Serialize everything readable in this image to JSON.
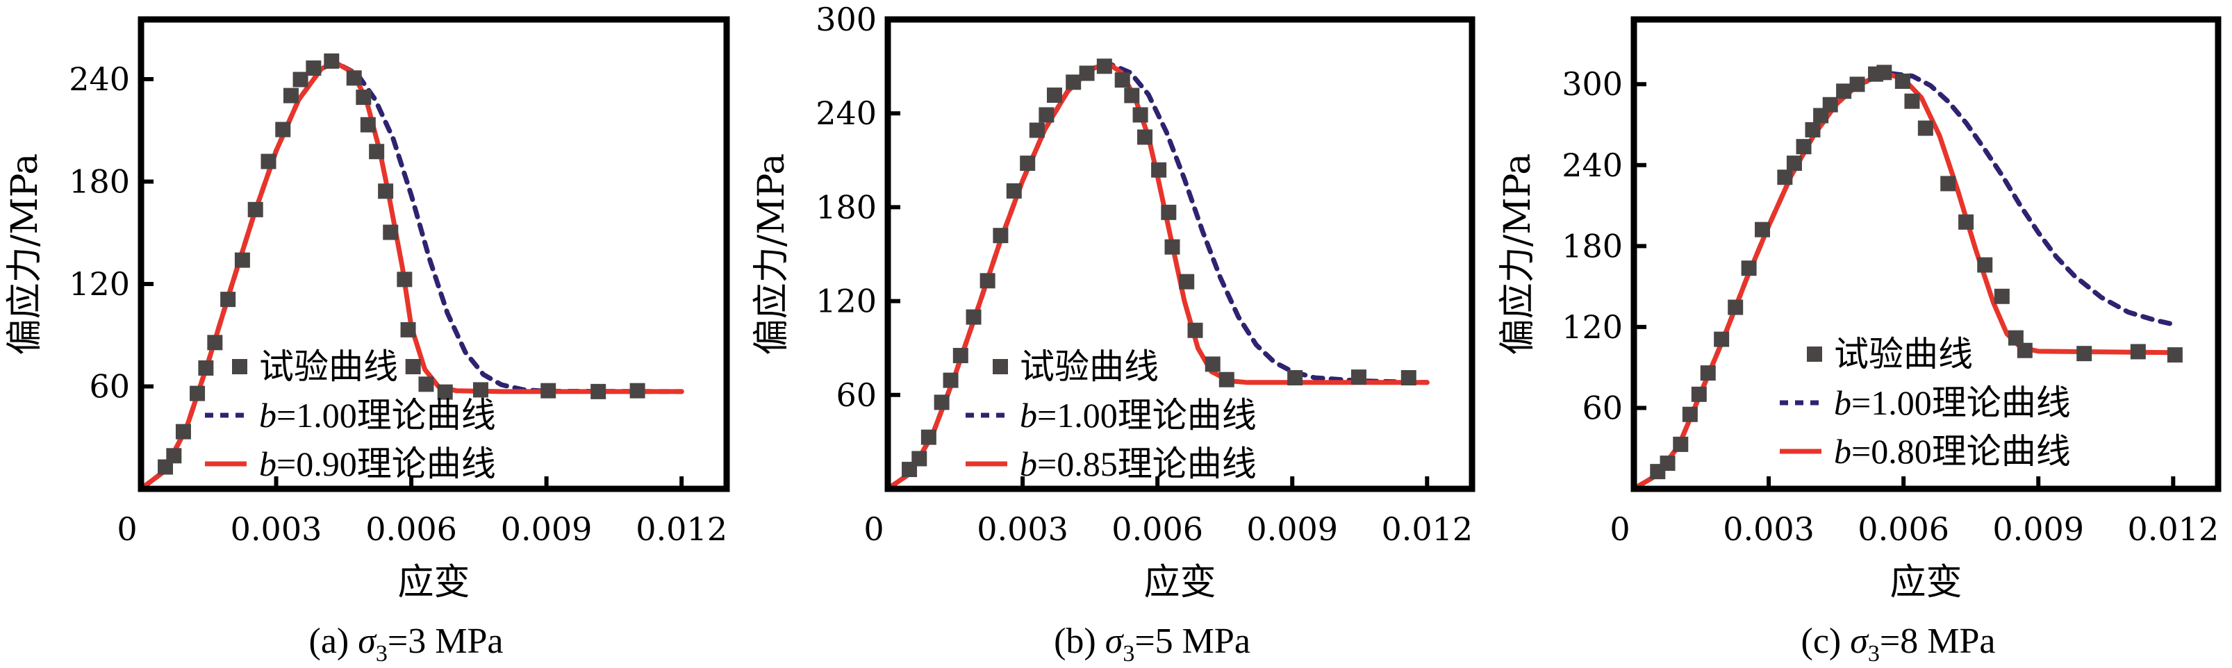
{
  "colors": {
    "experimental": "#4a4545",
    "b_one": "#2d2370",
    "b_fit": "#e8342a",
    "axis": "#000000"
  },
  "chart_data": [
    {
      "id": "a",
      "type": "scatter+line",
      "caption": {
        "prefix": "(a) ",
        "symbol": "σ",
        "subscript": "3",
        "suffix": "=3 MPa"
      },
      "xlabel": "应变",
      "ylabel": "偏应力/MPa",
      "xlim": [
        0,
        0.013
      ],
      "ylim": [
        0,
        275
      ],
      "xticks": [
        0,
        0.003,
        0.006,
        0.009,
        0.012
      ],
      "xtick_labels": [
        "0",
        "0.003",
        "0.006",
        "0.009",
        "0.012"
      ],
      "yticks": [
        60,
        120,
        180,
        240
      ],
      "ytick_labels": [
        "60",
        "120",
        "180",
        "240"
      ],
      "grid": false,
      "legend_position": "bottom-left",
      "legend": [
        {
          "label": "试验曲线",
          "kind": "marker"
        },
        {
          "label_prefix": "b",
          "label_rest": "=1.00理论曲线",
          "kind": "dashed"
        },
        {
          "label_prefix": "b",
          "label_rest": "=0.90理论曲线",
          "kind": "solid"
        }
      ],
      "series": [
        {
          "name": "试验曲线",
          "kind": "marker",
          "x": [
            0.00054,
            0.00073,
            0.00094,
            0.00125,
            0.00144,
            0.00164,
            0.00193,
            0.00225,
            0.00254,
            0.00283,
            0.00315,
            0.00333,
            0.00354,
            0.00383,
            0.00423,
            0.00473,
            0.00494,
            0.00504,
            0.00523,
            0.00543,
            0.00554,
            0.00585,
            0.00593,
            0.00604,
            0.00633,
            0.00675,
            0.00754,
            0.00904,
            0.01015,
            0.01102
          ],
          "y": [
            12.8,
            19.4,
            33.5,
            55.9,
            70.8,
            85.7,
            111,
            134,
            163.6,
            191.8,
            210.5,
            230.4,
            239.8,
            246.5,
            250.6,
            240.7,
            229.4,
            213.3,
            197.6,
            174.4,
            150.3,
            122.7,
            93.2,
            71.6,
            61.3,
            56.7,
            58,
            57.5,
            57,
            57.5
          ]
        },
        {
          "name": "b=1.00理论曲线",
          "kind": "dashed",
          "x": [
            0,
            0.0005,
            0.001,
            0.0015,
            0.002,
            0.0025,
            0.003,
            0.0035,
            0.004,
            0.0043,
            0.0048,
            0.0052,
            0.0056,
            0.006,
            0.0064,
            0.0068,
            0.0072,
            0.0076,
            0.008,
            0.0085,
            0.009,
            0.012
          ],
          "y": [
            0,
            10,
            35,
            75,
            118,
            160,
            198,
            228,
            246,
            250,
            243,
            228,
            205,
            172,
            135,
            103,
            80,
            67,
            61,
            58,
            57.2,
            57
          ]
        },
        {
          "name": "b=0.90理论曲线",
          "kind": "solid",
          "x": [
            0,
            0.0005,
            0.001,
            0.0015,
            0.002,
            0.0025,
            0.003,
            0.0035,
            0.004,
            0.0043,
            0.0047,
            0.005,
            0.0053,
            0.0055,
            0.0058,
            0.006,
            0.0063,
            0.0066,
            0.007,
            0.008,
            0.012
          ],
          "y": [
            0,
            10,
            35,
            75,
            118,
            160,
            198,
            228,
            246,
            250,
            244,
            228,
            198,
            172,
            130,
            95,
            70,
            60,
            57.5,
            57,
            57
          ]
        }
      ]
    },
    {
      "id": "b",
      "type": "scatter+line",
      "caption": {
        "prefix": "(b) ",
        "symbol": "σ",
        "subscript": "3",
        "suffix": "=5 MPa"
      },
      "xlabel": "应变",
      "ylabel": "偏应力/MPa",
      "xlim": [
        0,
        0.013
      ],
      "ylim": [
        0,
        300
      ],
      "xticks": [
        0,
        0.003,
        0.006,
        0.009,
        0.012
      ],
      "xtick_labels": [
        "0",
        "0.003",
        "0.006",
        "0.009",
        "0.012"
      ],
      "yticks": [
        60,
        120,
        180,
        240,
        300
      ],
      "ytick_labels": [
        "60",
        "120",
        "180",
        "240",
        "300"
      ],
      "grid": false,
      "legend_position": "bottom-left",
      "legend": [
        {
          "label": "试验曲线",
          "kind": "marker"
        },
        {
          "label_prefix": "b",
          "label_rest": "=1.00理论曲线",
          "kind": "dashed"
        },
        {
          "label_prefix": "b",
          "label_rest": "=0.85理论曲线",
          "kind": "solid"
        }
      ],
      "series": [
        {
          "name": "试验曲线",
          "kind": "marker",
          "x": [
            0.00048,
            0.0007,
            0.00091,
            0.0012,
            0.0014,
            0.00162,
            0.00191,
            0.00222,
            0.00251,
            0.00281,
            0.00311,
            0.00332,
            0.00353,
            0.00371,
            0.00413,
            0.00443,
            0.00482,
            0.00522,
            0.00543,
            0.00562,
            0.00572,
            0.00603,
            0.00625,
            0.00633,
            0.00665,
            0.00684,
            0.00723,
            0.00754,
            0.00906,
            0.01048,
            0.01159
          ],
          "y": [
            12.4,
            19.3,
            33,
            55.3,
            69.4,
            85.2,
            109.8,
            133,
            161.9,
            190.4,
            208.1,
            229.2,
            239,
            251.6,
            259.9,
            265.6,
            270.1,
            261.3,
            251.4,
            239,
            224.8,
            203.8,
            176.7,
            154.6,
            132.4,
            101.3,
            79.7,
            69.8,
            71,
            71.4,
            71
          ]
        },
        {
          "name": "b=1.00理论曲线",
          "kind": "dashed",
          "x": [
            0,
            0.0005,
            0.001,
            0.0015,
            0.002,
            0.0025,
            0.003,
            0.0035,
            0.004,
            0.0045,
            0.0049,
            0.0054,
            0.0058,
            0.0062,
            0.0066,
            0.007,
            0.0074,
            0.0078,
            0.0082,
            0.0086,
            0.009,
            0.0095,
            0.0105,
            0.012
          ],
          "y": [
            0,
            10,
            35,
            73,
            115,
            158,
            197,
            230,
            254,
            268,
            272,
            266,
            252,
            228,
            198,
            165,
            135,
            110,
            92,
            81,
            75,
            71,
            69,
            68
          ]
        },
        {
          "name": "b=0.85理论曲线",
          "kind": "solid",
          "x": [
            0,
            0.0005,
            0.001,
            0.0015,
            0.002,
            0.0025,
            0.003,
            0.0035,
            0.004,
            0.0045,
            0.0049,
            0.0052,
            0.0055,
            0.0058,
            0.006,
            0.0063,
            0.0066,
            0.0069,
            0.0072,
            0.0076,
            0.008,
            0.012
          ],
          "y": [
            0,
            10,
            35,
            73,
            115,
            158,
            197,
            230,
            254,
            268,
            272,
            266,
            250,
            225,
            200,
            160,
            120,
            90,
            75,
            69,
            68,
            68
          ]
        }
      ]
    },
    {
      "id": "c",
      "type": "scatter+line",
      "caption": {
        "prefix": "(c) ",
        "symbol": "σ",
        "subscript": "3",
        "suffix": "=8 MPa"
      },
      "xlabel": "应变",
      "ylabel": "偏应力/MPa",
      "xlim": [
        0,
        0.013
      ],
      "ylim": [
        0,
        348
      ],
      "xticks": [
        0,
        0.003,
        0.006,
        0.009,
        0.012
      ],
      "xtick_labels": [
        "0",
        "0.003",
        "0.006",
        "0.009",
        "0.012"
      ],
      "yticks": [
        60,
        120,
        180,
        240,
        300
      ],
      "ytick_labels": [
        "60",
        "120",
        "180",
        "240",
        "300"
      ],
      "grid": false,
      "legend_position": "bottom-right",
      "legend": [
        {
          "label": "试验曲线",
          "kind": "marker"
        },
        {
          "label_prefix": "b",
          "label_rest": "=1.00理论曲线",
          "kind": "dashed"
        },
        {
          "label_prefix": "b",
          "label_rest": "=0.80理论曲线",
          "kind": "solid"
        }
      ],
      "series": [
        {
          "name": "试验曲线",
          "kind": "marker",
          "x": [
            0.00053,
            0.00075,
            0.00104,
            0.00125,
            0.00145,
            0.00165,
            0.00195,
            0.00226,
            0.00256,
            0.00286,
            0.00336,
            0.00357,
            0.00378,
            0.00398,
            0.00416,
            0.00437,
            0.00467,
            0.00497,
            0.00538,
            0.00557,
            0.00598,
            0.00619,
            0.00649,
            0.00699,
            0.00739,
            0.00781,
            0.00819,
            0.0085,
            0.0087,
            0.01002,
            0.01122,
            0.01204
          ],
          "y": [
            12.8,
            19,
            33,
            55.2,
            70.1,
            85.9,
            110.9,
            134.6,
            163.6,
            192.2,
            231,
            241.4,
            253.7,
            266.2,
            276.7,
            284.8,
            294.8,
            299.9,
            307.5,
            308.7,
            302.2,
            287.4,
            267.4,
            226.3,
            197.8,
            166,
            142.7,
            111.9,
            102.6,
            100.3,
            101.7,
            99.3
          ]
        },
        {
          "name": "b=1.00理论曲线",
          "kind": "dashed",
          "x": [
            0,
            0.0005,
            0.001,
            0.0015,
            0.002,
            0.0025,
            0.003,
            0.0035,
            0.004,
            0.0045,
            0.005,
            0.0057,
            0.0062,
            0.0066,
            0.007,
            0.0074,
            0.0078,
            0.0082,
            0.0086,
            0.009,
            0.0094,
            0.0098,
            0.0104,
            0.011,
            0.0116,
            0.012
          ],
          "y": [
            0,
            10,
            32,
            72,
            112,
            155,
            195,
            232,
            262,
            285,
            300,
            308,
            306,
            299,
            287,
            271,
            252,
            232,
            210,
            190,
            172,
            158,
            142,
            131,
            125,
            122
          ]
        },
        {
          "name": "b=0.80理论曲线",
          "kind": "solid",
          "x": [
            0,
            0.0005,
            0.001,
            0.0015,
            0.002,
            0.0025,
            0.003,
            0.0035,
            0.004,
            0.0045,
            0.005,
            0.0056,
            0.006,
            0.0064,
            0.0068,
            0.0072,
            0.0076,
            0.008,
            0.0083,
            0.0086,
            0.009,
            0.012
          ],
          "y": [
            0,
            10,
            32,
            72,
            112,
            155,
            195,
            232,
            262,
            285,
            300,
            308,
            304,
            290,
            262,
            222,
            178,
            138,
            115,
            105,
            102,
            101
          ]
        }
      ]
    }
  ]
}
